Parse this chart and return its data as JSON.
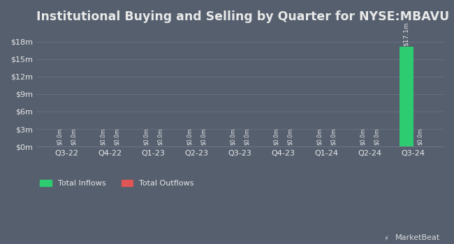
{
  "title": "Institutional Buying and Selling by Quarter for NYSE:MBAVU",
  "quarters": [
    "Q3-22",
    "Q4-22",
    "Q1-23",
    "Q2-23",
    "Q3-23",
    "Q4-23",
    "Q1-24",
    "Q2-24",
    "Q3-24"
  ],
  "inflows": [
    0,
    0,
    0,
    0,
    0,
    0,
    0,
    0,
    17100000
  ],
  "outflows": [
    0,
    0,
    0,
    0,
    0,
    0,
    0,
    0,
    0
  ],
  "inflow_color": "#2ecc71",
  "outflow_color": "#e05555",
  "background_color": "#555f6e",
  "plot_background_color": "#555f6e",
  "grid_color": "#6a7384",
  "text_color": "#e8e8e8",
  "title_fontsize": 12.5,
  "tick_fontsize": 8,
  "bar_label_color": "#e8e8e8",
  "bar_annotation": "$17.1m",
  "bar_annotation_index": 8,
  "ytick_labels": [
    "$0m",
    "$3m",
    "$6m",
    "$9m",
    "$12m",
    "$15m",
    "$18m"
  ],
  "ytick_values": [
    0,
    3000000,
    6000000,
    9000000,
    12000000,
    15000000,
    18000000
  ],
  "ylim": [
    0,
    20000000
  ],
  "legend_inflow_label": "Total Inflows",
  "legend_outflow_label": "Total Outflows",
  "bar_width": 0.32,
  "small_bar_labels": "$0.0m",
  "marketbeat_text": "MarketBeat"
}
